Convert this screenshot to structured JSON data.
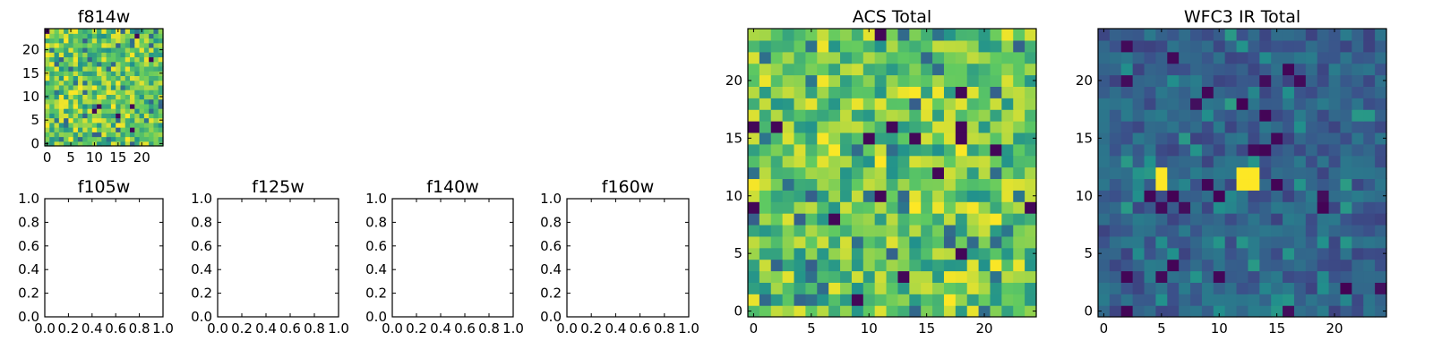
{
  "colormap": [
    "#440154",
    "#3b528b",
    "#21918c",
    "#5ec962",
    "#fde725"
  ],
  "chart_data": [
    {
      "type": "heatmap",
      "title": "f814w",
      "size": 25,
      "xlim": [
        -0.5,
        24.5
      ],
      "ylim": [
        -0.5,
        24.5
      ],
      "xticks": [
        0,
        5,
        10,
        15,
        20
      ],
      "yticks": [
        0,
        5,
        10,
        15,
        20
      ],
      "xticklabels": [
        "0",
        "5",
        "10",
        "15",
        "20"
      ],
      "yticklabels": [
        "0",
        "5",
        "10",
        "15",
        "20"
      ],
      "pattern": "noise-high",
      "seed": 11,
      "hot_pixels": []
    },
    {
      "type": "empty",
      "title": "f105w",
      "xlim": [
        0,
        1
      ],
      "ylim": [
        0,
        1
      ],
      "xticks": [
        0,
        0.2,
        0.4,
        0.6,
        0.8,
        1.0
      ],
      "yticks": [
        0,
        0.2,
        0.4,
        0.6,
        0.8,
        1.0
      ],
      "xticklabels": [
        "0.0",
        "0.2",
        "0.4",
        "0.6",
        "0.8",
        "1.0"
      ],
      "yticklabels": [
        "0.0",
        "0.2",
        "0.4",
        "0.6",
        "0.8",
        "1.0"
      ]
    },
    {
      "type": "empty",
      "title": "f125w",
      "xlim": [
        0,
        1
      ],
      "ylim": [
        0,
        1
      ],
      "xticks": [
        0,
        0.2,
        0.4,
        0.6,
        0.8,
        1.0
      ],
      "yticks": [
        0,
        0.2,
        0.4,
        0.6,
        0.8,
        1.0
      ],
      "xticklabels": [
        "0.0",
        "0.2",
        "0.4",
        "0.6",
        "0.8",
        "1.0"
      ],
      "yticklabels": [
        "0.0",
        "0.2",
        "0.4",
        "0.6",
        "0.8",
        "1.0"
      ]
    },
    {
      "type": "empty",
      "title": "f140w",
      "xlim": [
        0,
        1
      ],
      "ylim": [
        0,
        1
      ],
      "xticks": [
        0,
        0.2,
        0.4,
        0.6,
        0.8,
        1.0
      ],
      "yticks": [
        0,
        0.2,
        0.4,
        0.6,
        0.8,
        1.0
      ],
      "xticklabels": [
        "0.0",
        "0.2",
        "0.4",
        "0.6",
        "0.8",
        "1.0"
      ],
      "yticklabels": [
        "0.0",
        "0.2",
        "0.4",
        "0.6",
        "0.8",
        "1.0"
      ]
    },
    {
      "type": "empty",
      "title": "f160w",
      "xlim": [
        0,
        1
      ],
      "ylim": [
        0,
        1
      ],
      "xticks": [
        0,
        0.2,
        0.4,
        0.6,
        0.8,
        1.0
      ],
      "yticks": [
        0,
        0.2,
        0.4,
        0.6,
        0.8,
        1.0
      ],
      "xticklabels": [
        "0.0",
        "0.2",
        "0.4",
        "0.6",
        "0.8",
        "1.0"
      ],
      "yticklabels": [
        "0.0",
        "0.2",
        "0.4",
        "0.6",
        "0.8",
        "1.0"
      ]
    },
    {
      "type": "heatmap",
      "title": "ACS Total",
      "size": 25,
      "xlim": [
        -0.5,
        24.5
      ],
      "ylim": [
        -0.5,
        24.5
      ],
      "xticks": [
        0,
        5,
        10,
        15,
        20
      ],
      "yticks": [
        0,
        5,
        10,
        15,
        20
      ],
      "xticklabels": [
        "0",
        "5",
        "10",
        "15",
        "20"
      ],
      "yticklabels": [
        "0",
        "5",
        "10",
        "15",
        "20"
      ],
      "pattern": "noise-high",
      "seed": 23,
      "hot_pixels": []
    },
    {
      "type": "heatmap",
      "title": "WFC3 IR Total",
      "size": 25,
      "xlim": [
        -0.5,
        24.5
      ],
      "ylim": [
        -0.5,
        24.5
      ],
      "xticks": [
        0,
        5,
        10,
        15,
        20
      ],
      "yticks": [
        0,
        5,
        10,
        15,
        20
      ],
      "xticklabels": [
        "0",
        "5",
        "10",
        "15",
        "20"
      ],
      "yticklabels": [
        "0",
        "5",
        "10",
        "15",
        "20"
      ],
      "pattern": "noise-low",
      "seed": 37,
      "hot_pixels": [
        [
          5,
          11
        ],
        [
          5,
          12
        ],
        [
          12,
          11
        ],
        [
          12,
          12
        ],
        [
          13,
          11
        ],
        [
          13,
          12
        ]
      ]
    }
  ]
}
